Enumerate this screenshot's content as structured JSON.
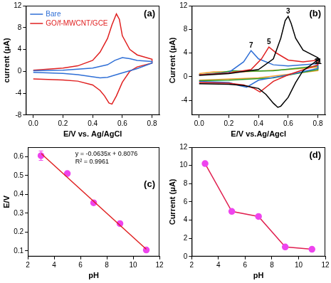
{
  "chart_data": [
    {
      "type": "line",
      "title": "(a)",
      "xlabel": "E/V vs. Ag/AgCl",
      "ylabel": "current (μA)",
      "xlim": [
        -0.05,
        0.85
      ],
      "xticks": [
        {
          "value": 0,
          "label": "0.0"
        },
        0.2,
        0.4,
        0.6,
        0.8
      ],
      "ylim": [
        -8,
        12
      ],
      "yticks": [
        -8,
        -4,
        0,
        4,
        8,
        12
      ],
      "grid": false,
      "legend": "upper left",
      "series": [
        {
          "name": "Bare",
          "color": "#2f6fd6",
          "x": [
            0,
            0.2,
            0.4,
            0.5,
            0.55,
            0.6,
            0.65,
            0.7,
            0.8,
            0.8,
            0.7,
            0.6,
            0.5,
            0.45,
            0.4,
            0.3,
            0.2,
            0
          ],
          "values": [
            0.1,
            0.2,
            0.6,
            1.2,
            2.0,
            2.5,
            2.3,
            2.0,
            1.8,
            1.5,
            0.5,
            -0.3,
            -1.1,
            -1.2,
            -1.0,
            -0.6,
            -0.4,
            -0.2
          ]
        },
        {
          "name": "GO/f-MWCNT/GCE",
          "color": "#e02020",
          "x": [
            0,
            0.1,
            0.2,
            0.3,
            0.4,
            0.45,
            0.5,
            0.53,
            0.56,
            0.58,
            0.6,
            0.65,
            0.7,
            0.8,
            0.8,
            0.7,
            0.65,
            0.6,
            0.56,
            0.53,
            0.51,
            0.48,
            0.45,
            0.4,
            0.3,
            0.2,
            0.1,
            0
          ],
          "values": [
            0.2,
            0.4,
            0.6,
            1.0,
            2.0,
            3.5,
            6.0,
            8.5,
            10.5,
            9.5,
            6.5,
            4.0,
            3.0,
            2.2,
            1.5,
            0.8,
            0.0,
            -2.0,
            -4.5,
            -6.0,
            -5.8,
            -4.5,
            -3.5,
            -2.5,
            -1.8,
            -1.6,
            -1.5,
            -1.4
          ]
        }
      ]
    },
    {
      "type": "line",
      "title": "(b)",
      "xlabel": "E/V vs.Ag/Agcl",
      "ylabel": "Current (μA)",
      "xlim": [
        -0.05,
        0.85
      ],
      "xticks": [
        {
          "value": 0,
          "label": "0.0"
        },
        0.2,
        0.4,
        0.6,
        0.8
      ],
      "ylim": [
        -6.5,
        12
      ],
      "yticks": [
        -4,
        0,
        4,
        8,
        12
      ],
      "grid": false,
      "series": [
        {
          "name": "3",
          "color": "#000000",
          "x": [
            0,
            0.2,
            0.4,
            0.5,
            0.55,
            0.58,
            0.6,
            0.62,
            0.65,
            0.7,
            0.8,
            0.8,
            0.7,
            0.65,
            0.6,
            0.55,
            0.53,
            0.5,
            0.45,
            0.4,
            0.3,
            0.2,
            0
          ],
          "values": [
            0.2,
            0.5,
            1.2,
            3.0,
            6.5,
            9.5,
            10.2,
            9.0,
            6.5,
            4.5,
            3.2,
            2.8,
            1.0,
            -1.0,
            -3.5,
            -5.0,
            -5.2,
            -4.5,
            -3.0,
            -2.0,
            -1.5,
            -1.3,
            -1.2
          ]
        },
        {
          "name": "5",
          "color": "#e02020",
          "x": [
            0,
            0.2,
            0.35,
            0.42,
            0.47,
            0.52,
            0.6,
            0.7,
            0.8,
            0.8,
            0.6,
            0.5,
            0.45,
            0.41,
            0.37,
            0.3,
            0.2,
            0
          ],
          "values": [
            0.3,
            0.6,
            1.2,
            3.0,
            5.0,
            4.0,
            2.8,
            2.5,
            2.8,
            2.0,
            0.3,
            -0.8,
            -1.8,
            -2.6,
            -2.0,
            -1.4,
            -1.1,
            -1.0
          ]
        },
        {
          "name": "7",
          "color": "#2f6fd6",
          "x": [
            0,
            0.2,
            0.3,
            0.35,
            0.4,
            0.5,
            0.6,
            0.8,
            0.8,
            0.6,
            0.4,
            0.32,
            0.27,
            0.2,
            0
          ],
          "values": [
            0.3,
            0.7,
            2.5,
            4.4,
            3.0,
            2.0,
            1.8,
            2.2,
            1.4,
            0.3,
            -0.6,
            -1.8,
            -1.5,
            -1.0,
            -0.8
          ]
        },
        {
          "name": "9",
          "color": "#2ca02c",
          "x": [
            0,
            0.15,
            0.22,
            0.3,
            0.5,
            0.8,
            0.8,
            0.5,
            0.2,
            0
          ],
          "values": [
            0.3,
            0.7,
            1.0,
            0.9,
            1.0,
            1.8,
            1.2,
            -0.2,
            -0.6,
            -0.7
          ]
        },
        {
          "name": "11",
          "color": "#f0a030",
          "x": [
            0,
            0.1,
            0.3,
            0.6,
            0.8,
            0.8,
            0.4,
            0.1,
            0
          ],
          "values": [
            0.5,
            0.8,
            0.8,
            1.2,
            1.6,
            1.0,
            -0.2,
            -0.5,
            -0.6
          ]
        }
      ]
    },
    {
      "type": "scatter",
      "title": "(c)",
      "xlabel": "pH",
      "ylabel": "E/V",
      "xlim": [
        2,
        12
      ],
      "xticks": [
        2,
        4,
        6,
        8,
        10,
        12
      ],
      "ylim": [
        0.07,
        0.65
      ],
      "yticks": [
        0.1,
        0.2,
        0.3,
        0.4,
        0.5,
        0.6
      ],
      "grid": false,
      "annotations": [
        "y = -0.0635x + 0.8076",
        "R² = 0.9961"
      ],
      "series": [
        {
          "type": "line",
          "color": "#e02020",
          "x": [
            3,
            11
          ],
          "values": [
            0.617,
            0.109
          ]
        },
        {
          "type": "scatter",
          "color": "#ee44ee",
          "marker": "circle",
          "x": [
            3,
            5,
            7,
            9,
            11
          ],
          "values": [
            0.605,
            0.51,
            0.355,
            0.245,
            0.105
          ],
          "errors": [
            0.025,
            0,
            0,
            0,
            0
          ]
        }
      ]
    },
    {
      "type": "line",
      "title": "(d)",
      "xlabel": "pH",
      "ylabel": "Current (μA)",
      "xlim": [
        2,
        12
      ],
      "xticks": [
        2,
        4,
        6,
        8,
        10,
        12
      ],
      "ylim": [
        0,
        12
      ],
      "yticks": [
        0,
        2,
        4,
        6,
        8,
        10,
        12
      ],
      "grid": false,
      "series": [
        {
          "color": "#e02050",
          "colors": [
            "#ee44ee",
            "#ee44ee",
            "#ee44ee",
            "#ee44ee",
            "#ee44ee"
          ],
          "marker": "circle",
          "x": [
            3,
            5,
            7,
            9,
            11
          ],
          "values": [
            10.2,
            4.95,
            4.4,
            1.05,
            0.8
          ]
        }
      ]
    }
  ]
}
